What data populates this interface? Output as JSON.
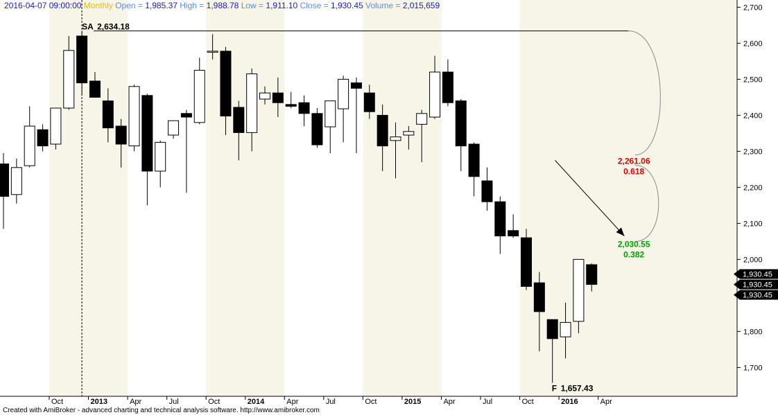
{
  "header": {
    "date": "2016-04-07 09:00:00",
    "interval": "Monthly",
    "open_label": "Open =",
    "open": "1,985.37",
    "high_label": "High =",
    "high": "1,988.78",
    "low_label": "Low =",
    "low": "1,911.10",
    "close_label": "Close =",
    "close": "1,930.45",
    "volume_label": "Volume =",
    "volume": "2,015,659"
  },
  "footer": "Created with AmiBroker - advanced charting and technical analysis software. http://www.amibroker.com",
  "chart_data": {
    "type": "candlestick",
    "ylim": [
      1620,
      2720
    ],
    "yticks": [
      1700,
      1800,
      1900,
      2000,
      2100,
      2200,
      2300,
      2400,
      2500,
      2600,
      2700
    ],
    "ytick_labels": [
      "1,700",
      "1,800",
      "1,900",
      "2,000",
      "2,100",
      "2,200",
      "2,300",
      "2,400",
      "2,500",
      "2,600",
      "2,700"
    ],
    "xtick_labels": [
      {
        "i": 4,
        "label": "Oct",
        "bold": false
      },
      {
        "i": 7,
        "label": "2013",
        "bold": true
      },
      {
        "i": 10,
        "label": "Apr",
        "bold": false
      },
      {
        "i": 13,
        "label": "Jul",
        "bold": false
      },
      {
        "i": 16,
        "label": "Oct",
        "bold": false
      },
      {
        "i": 19,
        "label": "2014",
        "bold": true
      },
      {
        "i": 22,
        "label": "Apr",
        "bold": false
      },
      {
        "i": 25,
        "label": "Jul",
        "bold": false
      },
      {
        "i": 28,
        "label": "Oct",
        "bold": false
      },
      {
        "i": 31,
        "label": "2015",
        "bold": true
      },
      {
        "i": 34,
        "label": "Apr",
        "bold": false
      },
      {
        "i": 37,
        "label": "Jul",
        "bold": false
      },
      {
        "i": 40,
        "label": "Oct",
        "bold": false
      },
      {
        "i": 43,
        "label": "2016",
        "bold": true
      },
      {
        "i": 46,
        "label": "Apr",
        "bold": false
      }
    ],
    "candles": [
      {
        "o": 2265,
        "h": 2295,
        "l": 2085,
        "c": 2175
      },
      {
        "o": 2180,
        "h": 2280,
        "l": 2155,
        "c": 2255
      },
      {
        "o": 2260,
        "h": 2425,
        "l": 2255,
        "c": 2370
      },
      {
        "o": 2360,
        "h": 2375,
        "l": 2300,
        "c": 2315
      },
      {
        "o": 2320,
        "h": 2420,
        "l": 2305,
        "c": 2420
      },
      {
        "o": 2420,
        "h": 2620,
        "l": 2415,
        "c": 2580
      },
      {
        "o": 2620,
        "h": 2634.18,
        "l": 2455,
        "c": 2490
      },
      {
        "o": 2495,
        "h": 2520,
        "l": 2450,
        "c": 2450
      },
      {
        "o": 2440,
        "h": 2475,
        "l": 2325,
        "c": 2365
      },
      {
        "o": 2370,
        "h": 2390,
        "l": 2255,
        "c": 2320
      },
      {
        "o": 2315,
        "h": 2485,
        "l": 2300,
        "c": 2480
      },
      {
        "o": 2455,
        "h": 2460,
        "l": 2150,
        "c": 2245
      },
      {
        "o": 2245,
        "h": 2330,
        "l": 2200,
        "c": 2325
      },
      {
        "o": 2345,
        "h": 2385,
        "l": 2335,
        "c": 2385
      },
      {
        "o": 2405,
        "h": 2415,
        "l": 2185,
        "c": 2395
      },
      {
        "o": 2380,
        "h": 2560,
        "l": 2375,
        "c": 2525
      },
      {
        "o": 2575,
        "h": 2625,
        "l": 2555,
        "c": 2578
      },
      {
        "o": 2578,
        "h": 2590,
        "l": 2345,
        "c": 2398
      },
      {
        "o": 2422,
        "h": 2440,
        "l": 2275,
        "c": 2352
      },
      {
        "o": 2352,
        "h": 2530,
        "l": 2300,
        "c": 2515
      },
      {
        "o": 2445,
        "h": 2480,
        "l": 2430,
        "c": 2462
      },
      {
        "o": 2462,
        "h": 2505,
        "l": 2395,
        "c": 2435
      },
      {
        "o": 2430,
        "h": 2465,
        "l": 2420,
        "c": 2425
      },
      {
        "o": 2435,
        "h": 2455,
        "l": 2370,
        "c": 2405
      },
      {
        "o": 2405,
        "h": 2420,
        "l": 2310,
        "c": 2318
      },
      {
        "o": 2368,
        "h": 2440,
        "l": 2295,
        "c": 2440
      },
      {
        "o": 2418,
        "h": 2510,
        "l": 2325,
        "c": 2500
      },
      {
        "o": 2490,
        "h": 2505,
        "l": 2295,
        "c": 2475
      },
      {
        "o": 2462,
        "h": 2485,
        "l": 2390,
        "c": 2410
      },
      {
        "o": 2400,
        "h": 2430,
        "l": 2245,
        "c": 2315
      },
      {
        "o": 2330,
        "h": 2380,
        "l": 2225,
        "c": 2340
      },
      {
        "o": 2345,
        "h": 2370,
        "l": 2305,
        "c": 2355
      },
      {
        "o": 2375,
        "h": 2415,
        "l": 2270,
        "c": 2405
      },
      {
        "o": 2395,
        "h": 2565,
        "l": 2390,
        "c": 2520
      },
      {
        "o": 2520,
        "h": 2555,
        "l": 2425,
        "c": 2435
      },
      {
        "o": 2440,
        "h": 2445,
        "l": 2245,
        "c": 2315
      },
      {
        "o": 2320,
        "h": 2325,
        "l": 2175,
        "c": 2230
      },
      {
        "o": 2218,
        "h": 2255,
        "l": 2135,
        "c": 2160
      },
      {
        "o": 2160,
        "h": 2175,
        "l": 2015,
        "c": 2065
      },
      {
        "o": 2080,
        "h": 2125,
        "l": 2060,
        "c": 2065
      },
      {
        "o": 2060,
        "h": 2085,
        "l": 1915,
        "c": 1925
      },
      {
        "o": 1935,
        "h": 1965,
        "l": 1745,
        "c": 1855
      },
      {
        "o": 1833,
        "h": 1830,
        "l": 1657.43,
        "c": 1780
      },
      {
        "o": 1785,
        "h": 1880,
        "l": 1725,
        "c": 1825
      },
      {
        "o": 1828,
        "h": 2000,
        "l": 1795,
        "c": 2000
      },
      {
        "o": 1985.37,
        "h": 1988.78,
        "l": 1911.1,
        "c": 1930.45
      }
    ],
    "annotations": {
      "sa_label": "SA",
      "sa_value": "2,634.18",
      "sa_level": 2634.18,
      "f_label": "F",
      "f_value": "1,657.43",
      "f_level": 1657.43,
      "fib_levels": [
        {
          "value": "2,261.06",
          "ratio": "0.618",
          "level": 2261.06,
          "color": "#e00000"
        },
        {
          "value": "2,030.55",
          "ratio": "0.382",
          "level": 2030.55,
          "color": "#00a000"
        }
      ],
      "arrow_from": {
        "i": 42.2,
        "y": 2275
      },
      "arrow_to": {
        "i": 47.5,
        "y": 2065
      },
      "last_price_tags": [
        "1,930.45",
        "1,930.45",
        "1,930.45"
      ]
    },
    "band_starts": [
      -0.5,
      3.5,
      9.5,
      15.5,
      21.5,
      27.5,
      33.5,
      39.5,
      45.5
    ],
    "sa_bar": 6
  }
}
